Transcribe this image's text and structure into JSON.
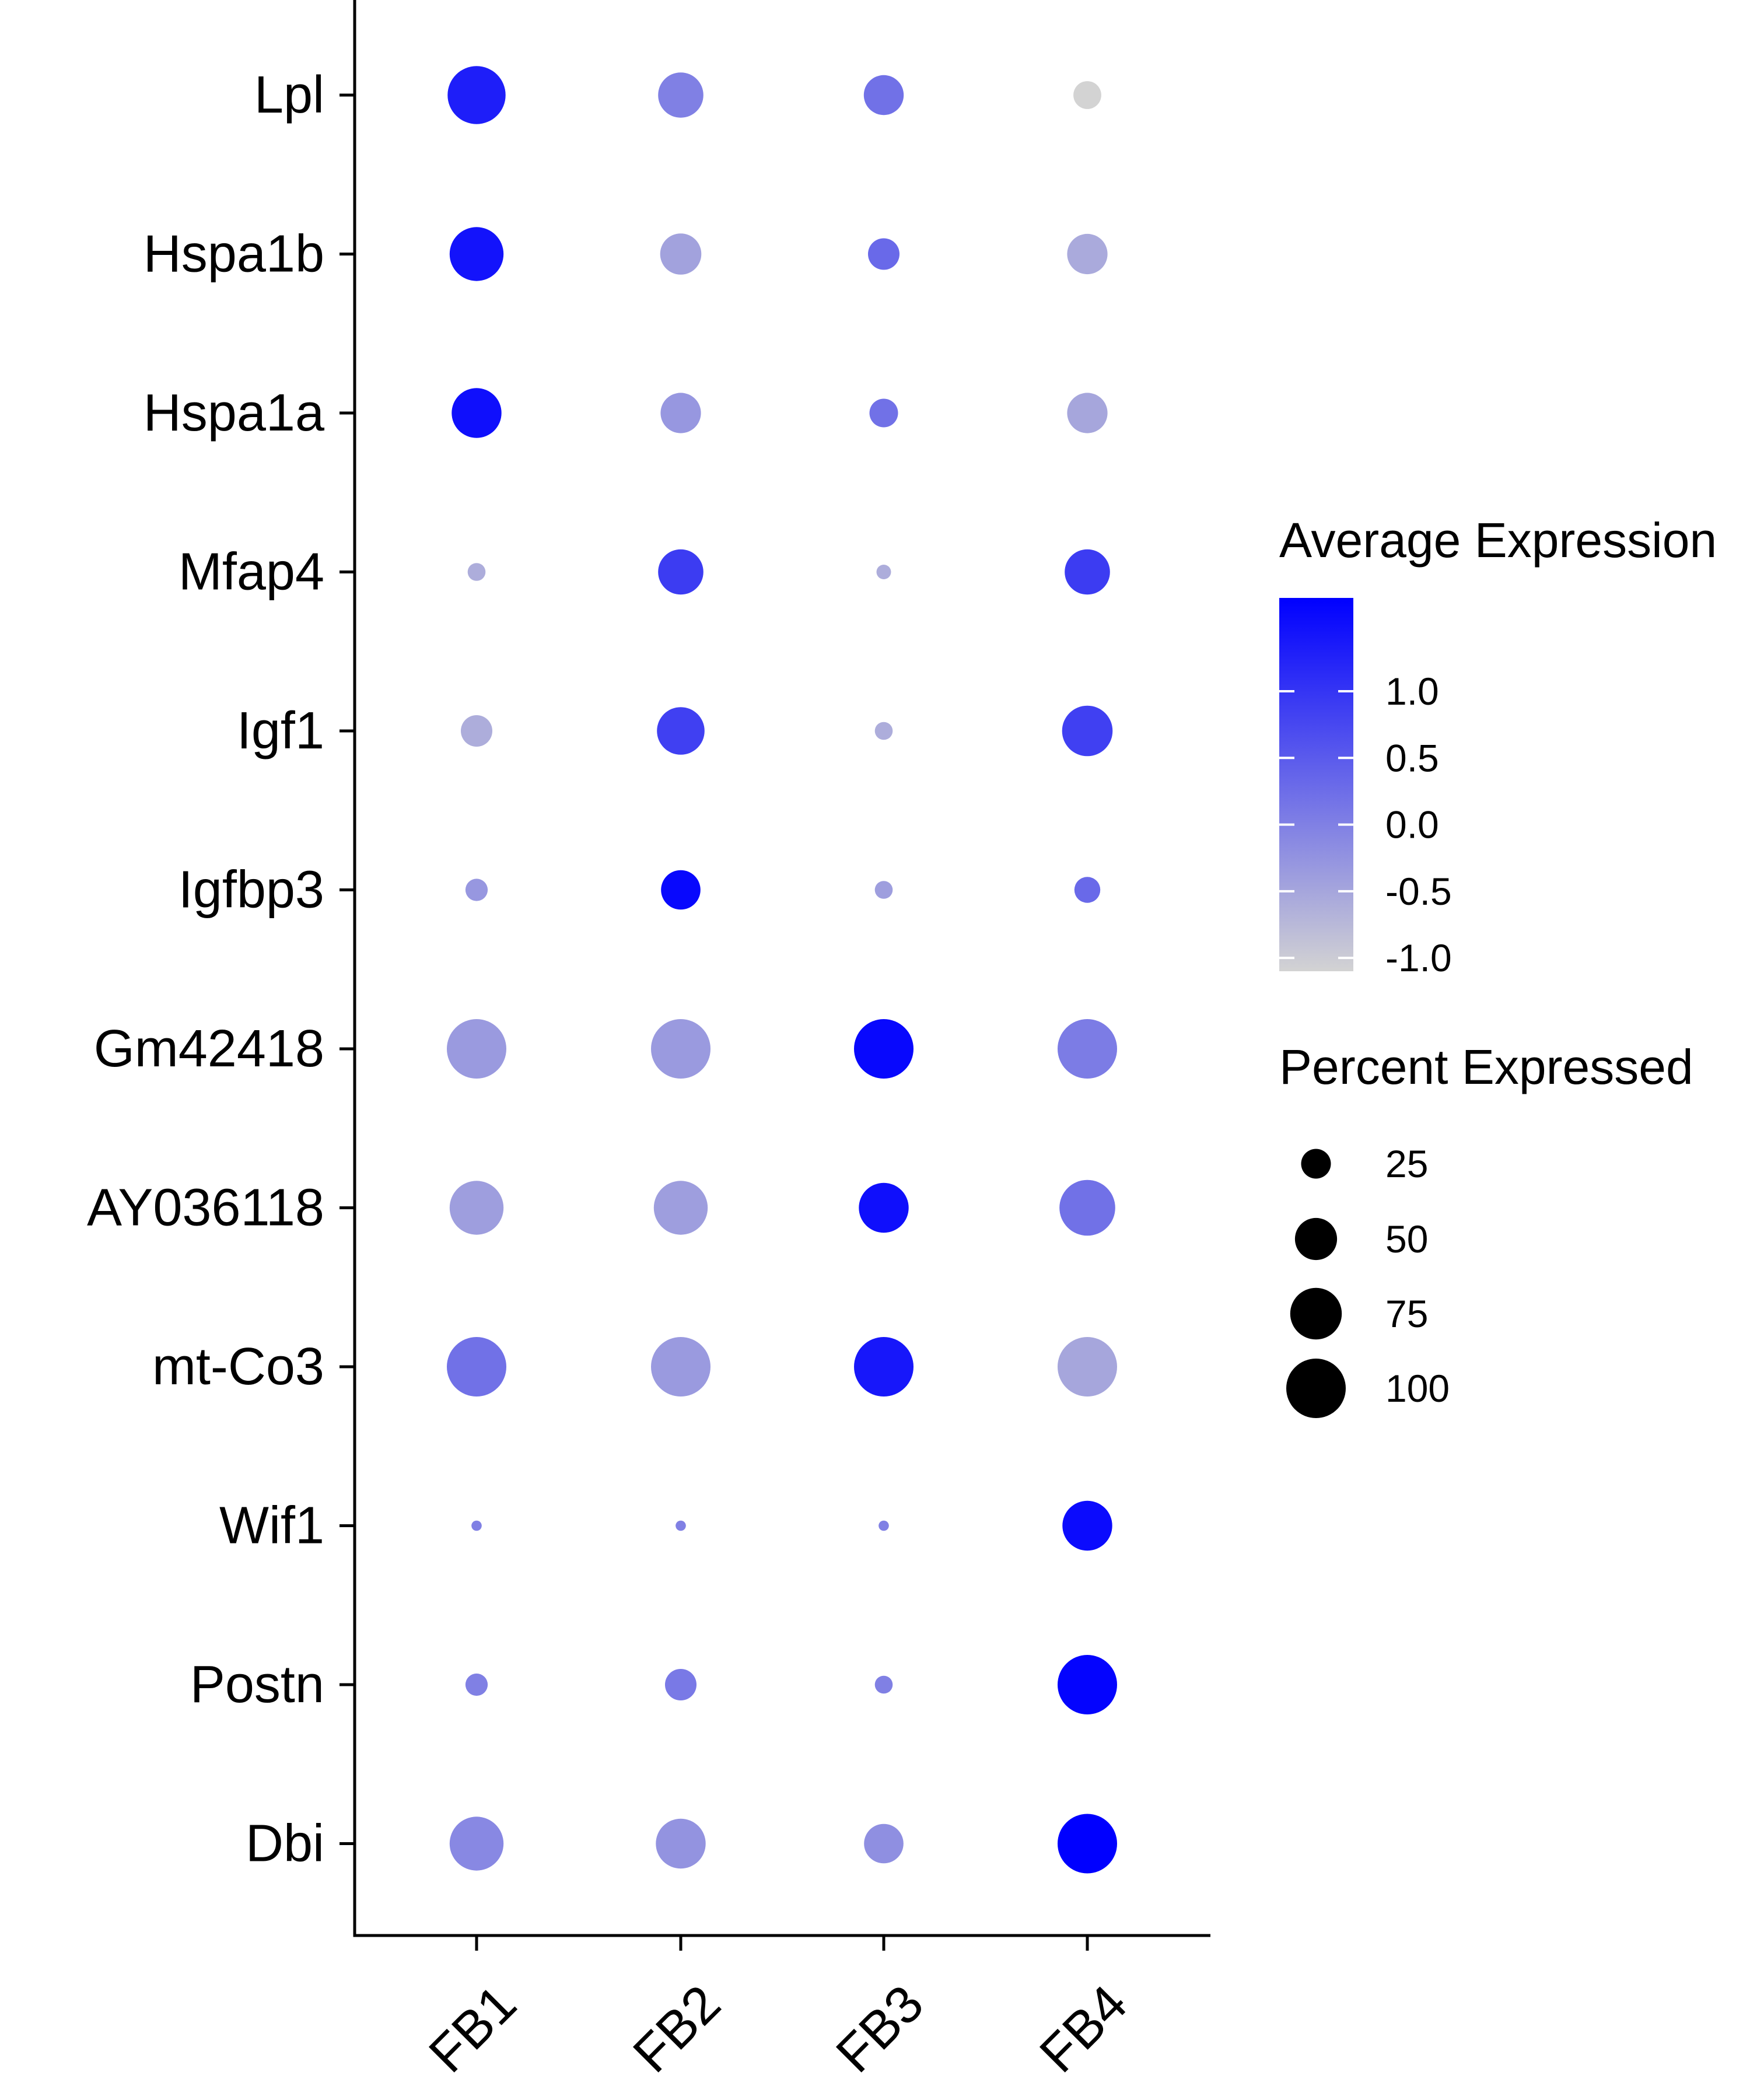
{
  "chart_data": {
    "type": "dot",
    "clusters": [
      "FB1",
      "FB2",
      "FB3",
      "FB4"
    ],
    "genes": [
      "Lpl",
      "Hspa1b",
      "Hspa1a",
      "Mfap4",
      "Igf1",
      "Igfbp3",
      "Gm42418",
      "AY036118",
      "mt-Co3",
      "Wif1",
      "Postn",
      "Dbi"
    ],
    "points": [
      {
        "gene": "Lpl",
        "cluster": "FB1",
        "avg_exp": 1.3,
        "pct": 95
      },
      {
        "gene": "Lpl",
        "cluster": "FB2",
        "avg_exp": 0.0,
        "pct": 58
      },
      {
        "gene": "Lpl",
        "cluster": "FB3",
        "avg_exp": 0.2,
        "pct": 45
      },
      {
        "gene": "Lpl",
        "cluster": "FB4",
        "avg_exp": -1.1,
        "pct": 22
      },
      {
        "gene": "Hspa1b",
        "cluster": "FB1",
        "avg_exp": 1.45,
        "pct": 82
      },
      {
        "gene": "Hspa1b",
        "cluster": "FB2",
        "avg_exp": -0.45,
        "pct": 48
      },
      {
        "gene": "Hspa1b",
        "cluster": "FB3",
        "avg_exp": 0.3,
        "pct": 28
      },
      {
        "gene": "Hspa1b",
        "cluster": "FB4",
        "avg_exp": -0.55,
        "pct": 46
      },
      {
        "gene": "Hspa1a",
        "cluster": "FB1",
        "avg_exp": 1.5,
        "pct": 70
      },
      {
        "gene": "Hspa1a",
        "cluster": "FB2",
        "avg_exp": -0.3,
        "pct": 46
      },
      {
        "gene": "Hspa1a",
        "cluster": "FB3",
        "avg_exp": 0.2,
        "pct": 23
      },
      {
        "gene": "Hspa1a",
        "cluster": "FB4",
        "avg_exp": -0.5,
        "pct": 46
      },
      {
        "gene": "Mfap4",
        "cluster": "FB1",
        "avg_exp": -0.6,
        "pct": 9
      },
      {
        "gene": "Mfap4",
        "cluster": "FB2",
        "avg_exp": 0.9,
        "pct": 58
      },
      {
        "gene": "Mfap4",
        "cluster": "FB3",
        "avg_exp": -0.6,
        "pct": 6
      },
      {
        "gene": "Mfap4",
        "cluster": "FB4",
        "avg_exp": 0.9,
        "pct": 58
      },
      {
        "gene": "Igf1",
        "cluster": "FB1",
        "avg_exp": -0.6,
        "pct": 28
      },
      {
        "gene": "Igf1",
        "cluster": "FB2",
        "avg_exp": 0.85,
        "pct": 64
      },
      {
        "gene": "Igf1",
        "cluster": "FB3",
        "avg_exp": -0.6,
        "pct": 9
      },
      {
        "gene": "Igf1",
        "cluster": "FB4",
        "avg_exp": 0.85,
        "pct": 72
      },
      {
        "gene": "Igfbp3",
        "cluster": "FB1",
        "avg_exp": -0.3,
        "pct": 14
      },
      {
        "gene": "Igfbp3",
        "cluster": "FB2",
        "avg_exp": 1.6,
        "pct": 44
      },
      {
        "gene": "Igfbp3",
        "cluster": "FB3",
        "avg_exp": -0.4,
        "pct": 9
      },
      {
        "gene": "Igfbp3",
        "cluster": "FB4",
        "avg_exp": 0.3,
        "pct": 19
      },
      {
        "gene": "Gm42418",
        "cluster": "FB1",
        "avg_exp": -0.35,
        "pct": 100
      },
      {
        "gene": "Gm42418",
        "cluster": "FB2",
        "avg_exp": -0.35,
        "pct": 100
      },
      {
        "gene": "Gm42418",
        "cluster": "FB3",
        "avg_exp": 1.6,
        "pct": 100
      },
      {
        "gene": "Gm42418",
        "cluster": "FB4",
        "avg_exp": 0.05,
        "pct": 100
      },
      {
        "gene": "AY036118",
        "cluster": "FB1",
        "avg_exp": -0.4,
        "pct": 82
      },
      {
        "gene": "AY036118",
        "cluster": "FB2",
        "avg_exp": -0.4,
        "pct": 82
      },
      {
        "gene": "AY036118",
        "cluster": "FB3",
        "avg_exp": 1.5,
        "pct": 70
      },
      {
        "gene": "AY036118",
        "cluster": "FB4",
        "avg_exp": 0.2,
        "pct": 88
      },
      {
        "gene": "mt-Co3",
        "cluster": "FB1",
        "avg_exp": 0.2,
        "pct": 100
      },
      {
        "gene": "mt-Co3",
        "cluster": "FB2",
        "avg_exp": -0.35,
        "pct": 100
      },
      {
        "gene": "mt-Co3",
        "cluster": "FB3",
        "avg_exp": 1.4,
        "pct": 100
      },
      {
        "gene": "mt-Co3",
        "cluster": "FB4",
        "avg_exp": -0.5,
        "pct": 100
      },
      {
        "gene": "Wif1",
        "cluster": "FB1",
        "avg_exp": 0.0,
        "pct": 3
      },
      {
        "gene": "Wif1",
        "cluster": "FB2",
        "avg_exp": 0.0,
        "pct": 3
      },
      {
        "gene": "Wif1",
        "cluster": "FB3",
        "avg_exp": 0.0,
        "pct": 3
      },
      {
        "gene": "Wif1",
        "cluster": "FB4",
        "avg_exp": 1.55,
        "pct": 70
      },
      {
        "gene": "Postn",
        "cluster": "FB1",
        "avg_exp": 0.0,
        "pct": 14
      },
      {
        "gene": "Postn",
        "cluster": "FB2",
        "avg_exp": 0.1,
        "pct": 28
      },
      {
        "gene": "Postn",
        "cluster": "FB3",
        "avg_exp": 0.0,
        "pct": 9
      },
      {
        "gene": "Postn",
        "cluster": "FB4",
        "avg_exp": 1.65,
        "pct": 100
      },
      {
        "gene": "Dbi",
        "cluster": "FB1",
        "avg_exp": -0.1,
        "pct": 82
      },
      {
        "gene": "Dbi",
        "cluster": "FB2",
        "avg_exp": -0.25,
        "pct": 70
      },
      {
        "gene": "Dbi",
        "cluster": "FB3",
        "avg_exp": -0.2,
        "pct": 44
      },
      {
        "gene": "Dbi",
        "cluster": "FB4",
        "avg_exp": 1.7,
        "pct": 100
      }
    ],
    "color_legend": {
      "title": "Average Expression",
      "ticks": [
        1.0,
        0.5,
        0.0,
        -0.5,
        -1.0
      ],
      "tick_labels": [
        "1.0",
        "0.5",
        "0.0",
        "-0.5",
        "-1.0"
      ],
      "range": [
        -1.1,
        1.7
      ],
      "low_color": "#d3d3d3",
      "high_color": "#0000ff"
    },
    "size_legend": {
      "title": "Percent Expressed",
      "values": [
        25,
        50,
        75,
        100
      ],
      "labels": [
        "25",
        "50",
        "75",
        "100"
      ]
    },
    "xlabel": "",
    "ylabel": "",
    "legend_position": "right",
    "grid": false
  }
}
